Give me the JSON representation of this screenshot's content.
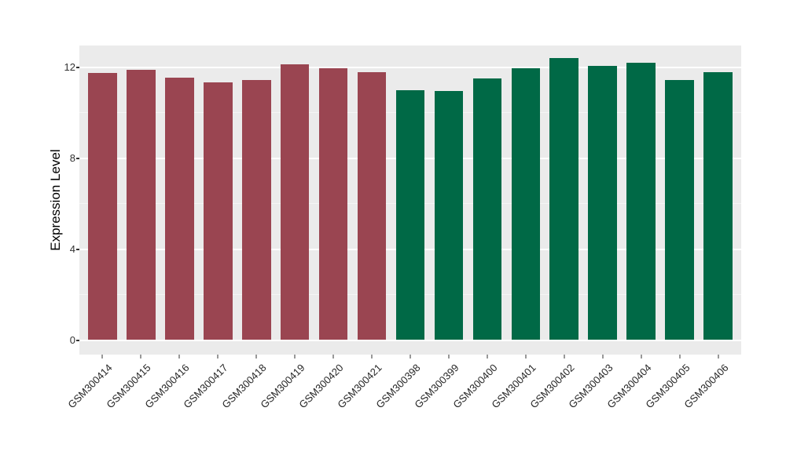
{
  "chart_data": {
    "type": "bar",
    "title": "",
    "xlabel": "",
    "ylabel": "Expression Level",
    "categories": [
      "GSM300414",
      "GSM300415",
      "GSM300416",
      "GSM300417",
      "GSM300418",
      "GSM300419",
      "GSM300420",
      "GSM300421",
      "GSM300398",
      "GSM300399",
      "GSM300400",
      "GSM300401",
      "GSM300402",
      "GSM300403",
      "GSM300404",
      "GSM300405",
      "GSM300406"
    ],
    "values": [
      11.75,
      11.9,
      11.55,
      11.35,
      11.45,
      12.15,
      11.95,
      11.8,
      11.0,
      10.95,
      11.5,
      11.95,
      12.4,
      12.05,
      12.2,
      11.45,
      11.8
    ],
    "groups": [
      "maroon",
      "maroon",
      "maroon",
      "maroon",
      "maroon",
      "maroon",
      "maroon",
      "maroon",
      "green",
      "green",
      "green",
      "green",
      "green",
      "green",
      "green",
      "green",
      "green"
    ],
    "group_colors": {
      "maroon": "#9A4551",
      "green": "#006946"
    },
    "panel_bg": "#EBEBEB",
    "ylim": [
      -0.64,
      12.96
    ],
    "yticks": [
      0,
      4,
      8,
      12
    ],
    "yticks_minor": [
      2,
      6,
      10
    ],
    "grid": "on",
    "legend": "none",
    "x_label_rotation": 45,
    "bar_width_fraction": 0.75
  }
}
